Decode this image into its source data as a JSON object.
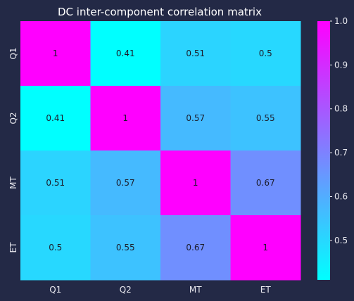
{
  "chart_data": {
    "type": "heatmap",
    "title": "DC inter-component correlation matrix",
    "xlabel": "",
    "ylabel": "",
    "x_categories": [
      "Q1",
      "Q2",
      "MT",
      "ET"
    ],
    "y_categories": [
      "Q1",
      "Q2",
      "MT",
      "ET"
    ],
    "values": [
      [
        1,
        0.41,
        0.51,
        0.5
      ],
      [
        0.41,
        1,
        0.57,
        0.55
      ],
      [
        0.51,
        0.57,
        1,
        0.67
      ],
      [
        0.5,
        0.55,
        0.67,
        1
      ]
    ],
    "cell_labels": [
      [
        "1",
        "0.41",
        "0.51",
        "0.5"
      ],
      [
        "0.41",
        "1",
        "0.57",
        "0.55"
      ],
      [
        "0.51",
        "0.57",
        "1",
        "0.67"
      ],
      [
        "0.5",
        "0.55",
        "0.67",
        "1"
      ]
    ],
    "colorbar": {
      "range": [
        0.41,
        1.0
      ],
      "ticks": [
        0.5,
        0.6,
        0.7,
        0.8,
        0.9,
        1.0
      ],
      "tick_labels": [
        "0.5",
        "0.6",
        "0.7",
        "0.8",
        "0.9",
        "1.0"
      ],
      "colormap": "cool",
      "color_low": "#00ffff",
      "color_high": "#ff00ff"
    },
    "colors": {
      "background": "#232946",
      "text": "#ffffff",
      "cell_text": "#1c1c2c"
    }
  }
}
